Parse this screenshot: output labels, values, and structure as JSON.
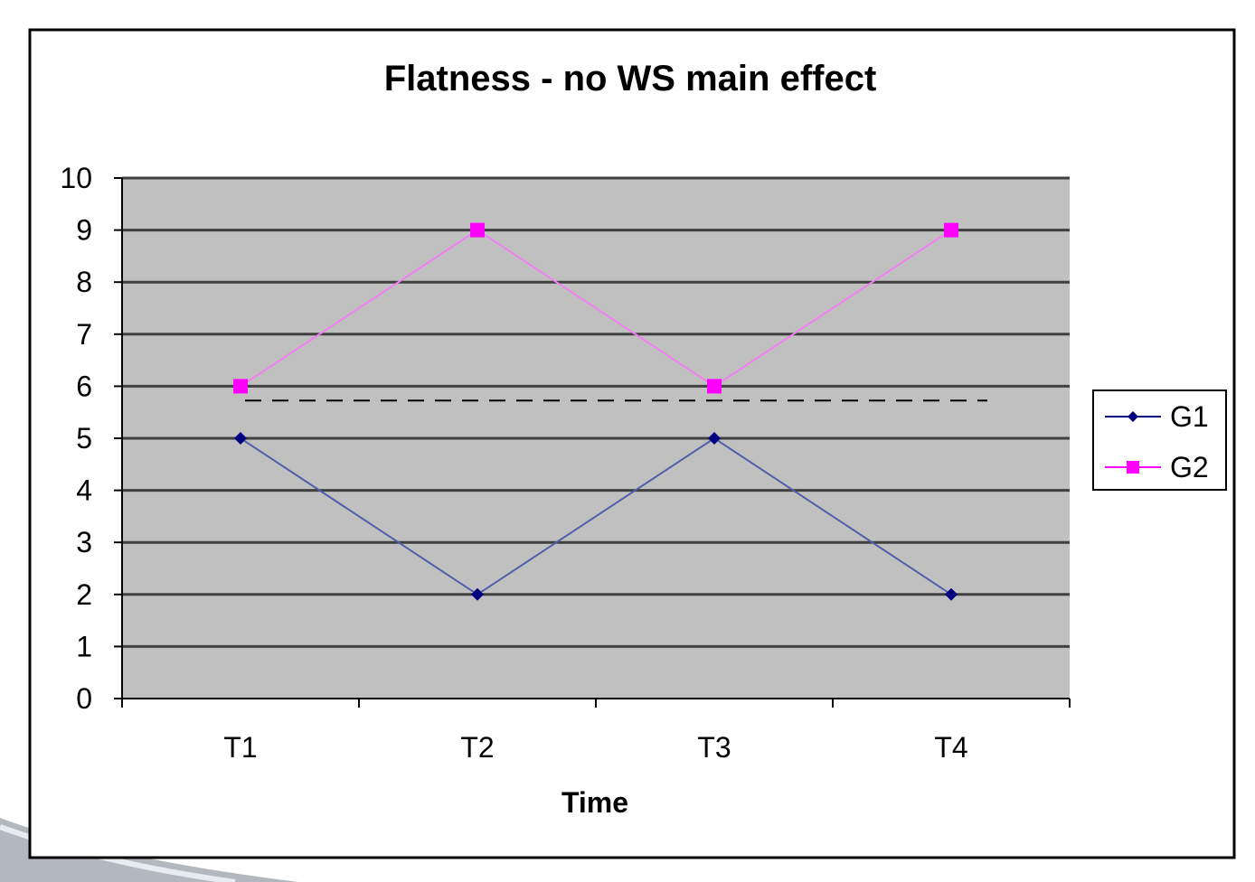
{
  "colors": {
    "plot_bg": "#c0c0c0",
    "gridline": "#404040",
    "frame": "#000000",
    "g1": "#000080",
    "g1_line": "#5060a8",
    "g2": "#ff00ff",
    "g2_line": "#f080f0",
    "reference": "#000000"
  },
  "chart_data": {
    "type": "line",
    "title": "Flatness - no WS main effect",
    "xlabel": "Time",
    "ylabel": "",
    "categories": [
      "T1",
      "T2",
      "T3",
      "T4"
    ],
    "ylim": [
      0,
      10
    ],
    "yticks": [
      "0",
      "1",
      "2",
      "3",
      "4",
      "5",
      "6",
      "7",
      "8",
      "9",
      "10"
    ],
    "grid": true,
    "legend_position": "right",
    "series": [
      {
        "name": "G1",
        "values": [
          5,
          2,
          5,
          2
        ],
        "marker": "diamond"
      },
      {
        "name": "G2",
        "values": [
          6,
          9,
          6,
          9
        ],
        "marker": "square"
      }
    ],
    "reference_line": {
      "style": "dashed",
      "value": 5.5
    }
  }
}
